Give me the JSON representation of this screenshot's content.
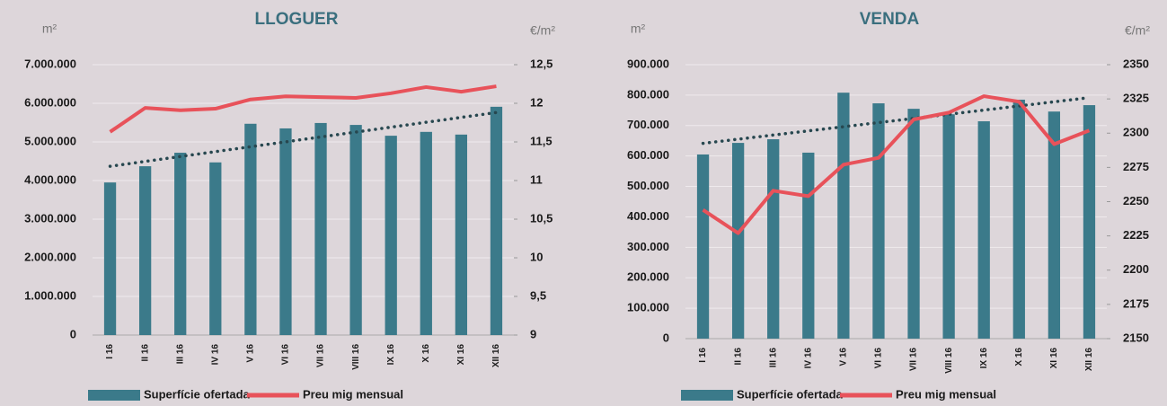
{
  "chart_data": [
    {
      "type": "bar_line",
      "title": "LLOGUER",
      "y_label": "m²",
      "y2_label": "€/m²",
      "categories": [
        "I 16",
        "II 16",
        "III 16",
        "IV 16",
        "V 16",
        "VI 16",
        "VII 16",
        "VIII 16",
        "IX 16",
        "X 16",
        "XI 16",
        "XII 16"
      ],
      "series": [
        {
          "name": "Superfície ofertada",
          "color": "#3b7a8a",
          "type": "bar",
          "values": [
            3950000,
            4370000,
            4720000,
            4470000,
            5470000,
            5350000,
            5490000,
            5440000,
            5160000,
            5260000,
            5190000,
            5910000
          ]
        },
        {
          "name": "Preu mig mensual",
          "color": "#e8525a",
          "type": "line",
          "axis": "y2",
          "values": [
            11.63,
            11.94,
            11.91,
            11.93,
            12.05,
            12.09,
            12.08,
            12.07,
            12.13,
            12.21,
            12.15,
            12.22
          ]
        }
      ],
      "ylim": [
        0,
        7000000
      ],
      "yticks": [
        0,
        {
          "value": 1000000,
          "label": "1.000.000"
        },
        {
          "value": 2000000,
          "label": "2.000.000"
        },
        {
          "value": 3000000,
          "label": "3.000.000"
        },
        {
          "value": 4000000,
          "label": "4.000.000"
        },
        {
          "value": 5000000,
          "label": "5.000.000"
        },
        {
          "value": 6000000,
          "label": "6.000.000"
        },
        {
          "value": 7000000,
          "label": "7.000.000"
        }
      ],
      "y2lim": [
        9,
        12.5
      ],
      "y2ticks": [
        9,
        {
          "value": 9.5,
          "label": "9,5"
        },
        10,
        {
          "value": 10.5,
          "label": "10,5"
        },
        11,
        {
          "value": 11.5,
          "label": "11,5"
        },
        12,
        {
          "value": 12.5,
          "label": "12,5"
        }
      ],
      "trendline": true,
      "grid": true
    },
    {
      "type": "bar_line",
      "title": "VENDA",
      "y_label": "m²",
      "y2_label": "€/m²",
      "categories": [
        "I 16",
        "II 16",
        "III 16",
        "IV 16",
        "V 16",
        "VI 16",
        "VII 16",
        "VIII 16",
        "IX 16",
        "X 16",
        "XI 16",
        "XII 16"
      ],
      "series": [
        {
          "name": "Superfície ofertada",
          "color": "#3b7a8a",
          "type": "bar",
          "values": [
            605000,
            643000,
            655000,
            611000,
            808000,
            773000,
            755000,
            737000,
            714000,
            785000,
            746000,
            767000
          ]
        },
        {
          "name": "Preu mig mensual",
          "color": "#e8525a",
          "type": "line",
          "axis": "y2",
          "values": [
            2244,
            2227,
            2258,
            2254,
            2277,
            2282,
            2310,
            2315,
            2327,
            2323,
            2292,
            2302
          ]
        }
      ],
      "ylim": [
        0,
        900000
      ],
      "yticks": [
        0,
        {
          "value": 100000,
          "label": "100.000"
        },
        {
          "value": 200000,
          "label": "200.000"
        },
        {
          "value": 300000,
          "label": "300.000"
        },
        {
          "value": 400000,
          "label": "400.000"
        },
        {
          "value": 500000,
          "label": "500.000"
        },
        {
          "value": 600000,
          "label": "600.000"
        },
        {
          "value": 700000,
          "label": "700.000"
        },
        {
          "value": 800000,
          "label": "800.000"
        },
        {
          "value": 900000,
          "label": "900.000"
        }
      ],
      "y2lim": [
        2150,
        2350
      ],
      "y2ticks": [
        2150,
        2175,
        2200,
        2225,
        2250,
        2275,
        2300,
        2325,
        2350
      ],
      "trendline": true,
      "grid": true
    }
  ]
}
